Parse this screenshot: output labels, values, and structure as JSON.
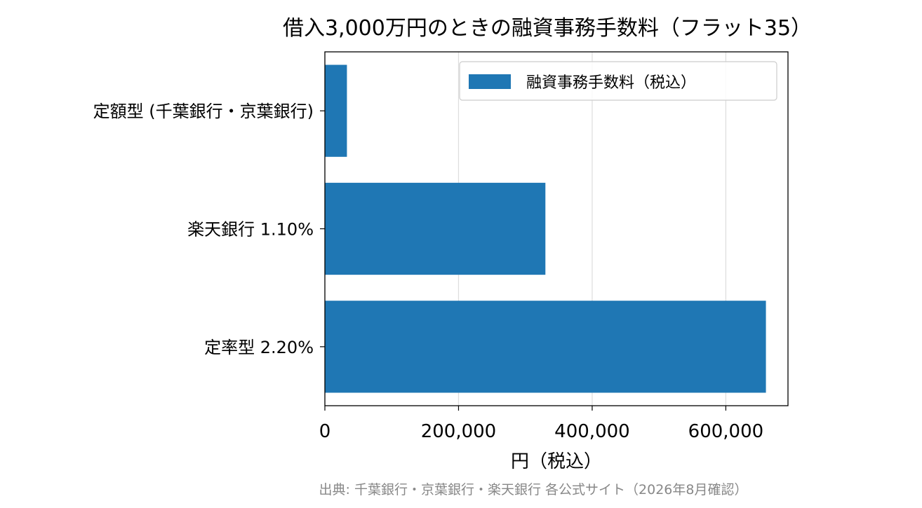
{
  "chart_data": {
    "type": "bar",
    "orientation": "horizontal",
    "title": "借入3,000万円のときの融資事務手数料（フラット35）",
    "xlabel": "円（税込）",
    "ylabel": "",
    "categories": [
      "定率型 2.20%",
      "楽天銀行 1.10%",
      "定額型 (千葉銀行・京葉銀行)"
    ],
    "series": [
      {
        "name": "融資事務手数料（税込）",
        "values": [
          660000,
          330000,
          33000
        ],
        "color": "#1f77b4"
      }
    ],
    "xlim": [
      0,
      693000
    ],
    "xticks": [
      0,
      200000,
      400000,
      600000
    ],
    "xtick_labels": [
      "0",
      "200,000",
      "400,000",
      "600,000"
    ],
    "grid": {
      "x": true,
      "y": false
    },
    "legend_position": "top-right",
    "source": "出典: 千葉銀行・京葉銀行・楽天銀行 各公式サイト（2026年8月確認）"
  }
}
